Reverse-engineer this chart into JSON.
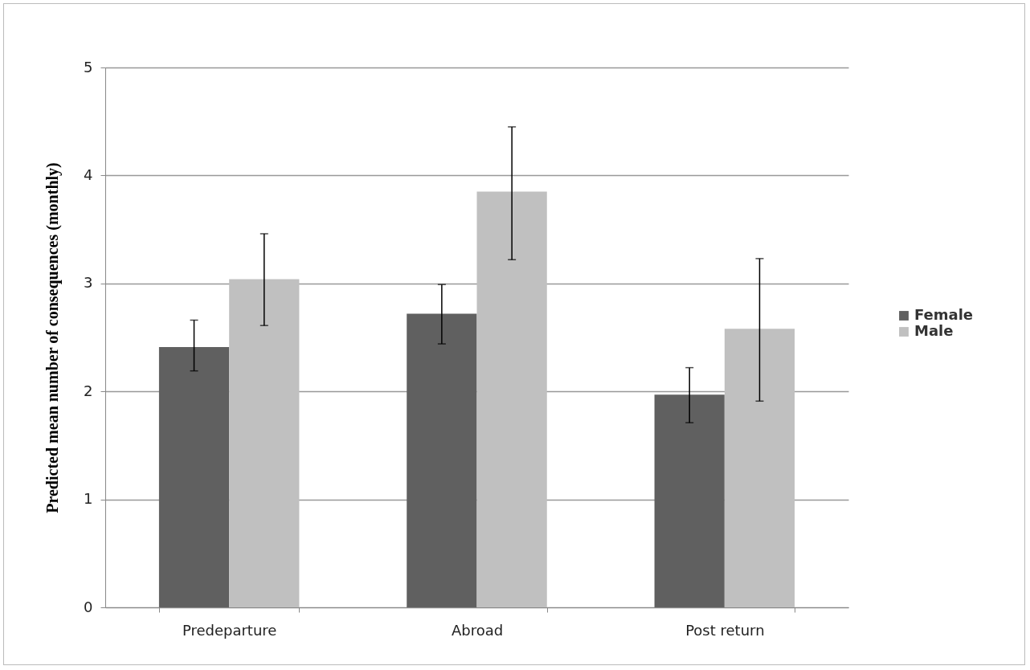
{
  "chart_data": {
    "type": "bar",
    "ylabel": "Predicted mean number of consequences (monthly)",
    "categories": [
      "Predeparture",
      "Abroad",
      "Post return"
    ],
    "series": [
      {
        "name": "Female",
        "color": "#606060",
        "values": [
          2.41,
          2.72,
          1.97
        ],
        "errors": [
          [
            2.19,
            2.66
          ],
          [
            2.44,
            2.99
          ],
          [
            1.71,
            2.22
          ]
        ]
      },
      {
        "name": "Male",
        "color": "#c0c0c0",
        "values": [
          3.04,
          3.85,
          2.58
        ],
        "errors": [
          [
            2.61,
            3.46
          ],
          [
            3.22,
            4.45
          ],
          [
            1.91,
            3.23
          ]
        ]
      }
    ],
    "ylim": [
      0,
      5
    ],
    "yticks": [
      0,
      1,
      2,
      3,
      4,
      5
    ],
    "grid": "y",
    "legend": "right"
  }
}
